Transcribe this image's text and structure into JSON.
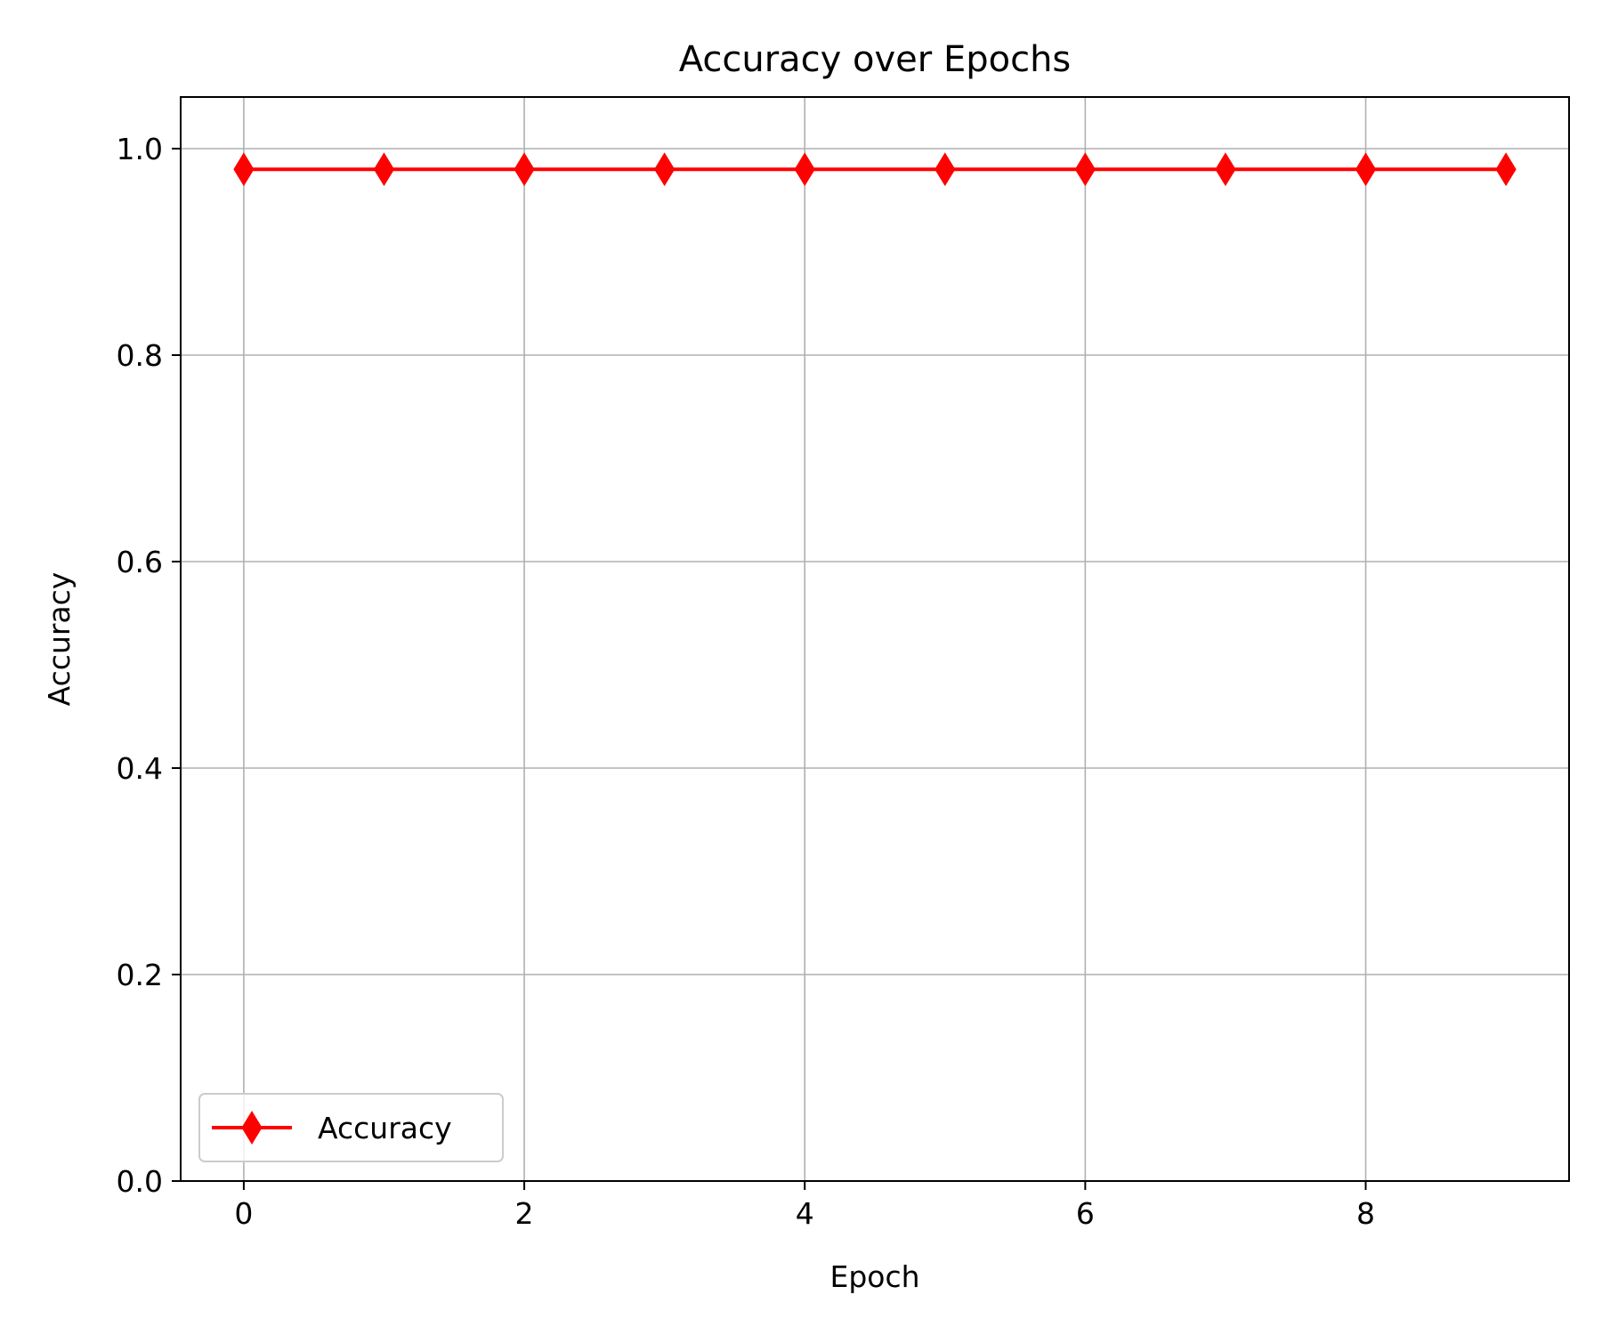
{
  "chart_data": {
    "type": "line",
    "title": "Accuracy over Epochs",
    "xlabel": "Epoch",
    "ylabel": "Accuracy",
    "xlim": [
      -0.45,
      9.45
    ],
    "ylim": [
      0.0,
      1.05
    ],
    "xticks": [
      0,
      2,
      4,
      6,
      8
    ],
    "xtick_labels": [
      "0",
      "2",
      "4",
      "6",
      "8"
    ],
    "yticks": [
      0.0,
      0.2,
      0.4,
      0.6,
      0.8,
      1.0
    ],
    "ytick_labels": [
      "0.0",
      "0.2",
      "0.4",
      "0.6",
      "0.8",
      "1.0"
    ],
    "grid": true,
    "legend_position": "lower-left",
    "series": [
      {
        "name": "Accuracy",
        "color": "#ff0000",
        "marker": "thin-diamond",
        "x": [
          0,
          1,
          2,
          3,
          4,
          5,
          6,
          7,
          8,
          9
        ],
        "y": [
          0.98,
          0.98,
          0.98,
          0.98,
          0.98,
          0.98,
          0.98,
          0.98,
          0.98,
          0.98
        ]
      }
    ]
  }
}
